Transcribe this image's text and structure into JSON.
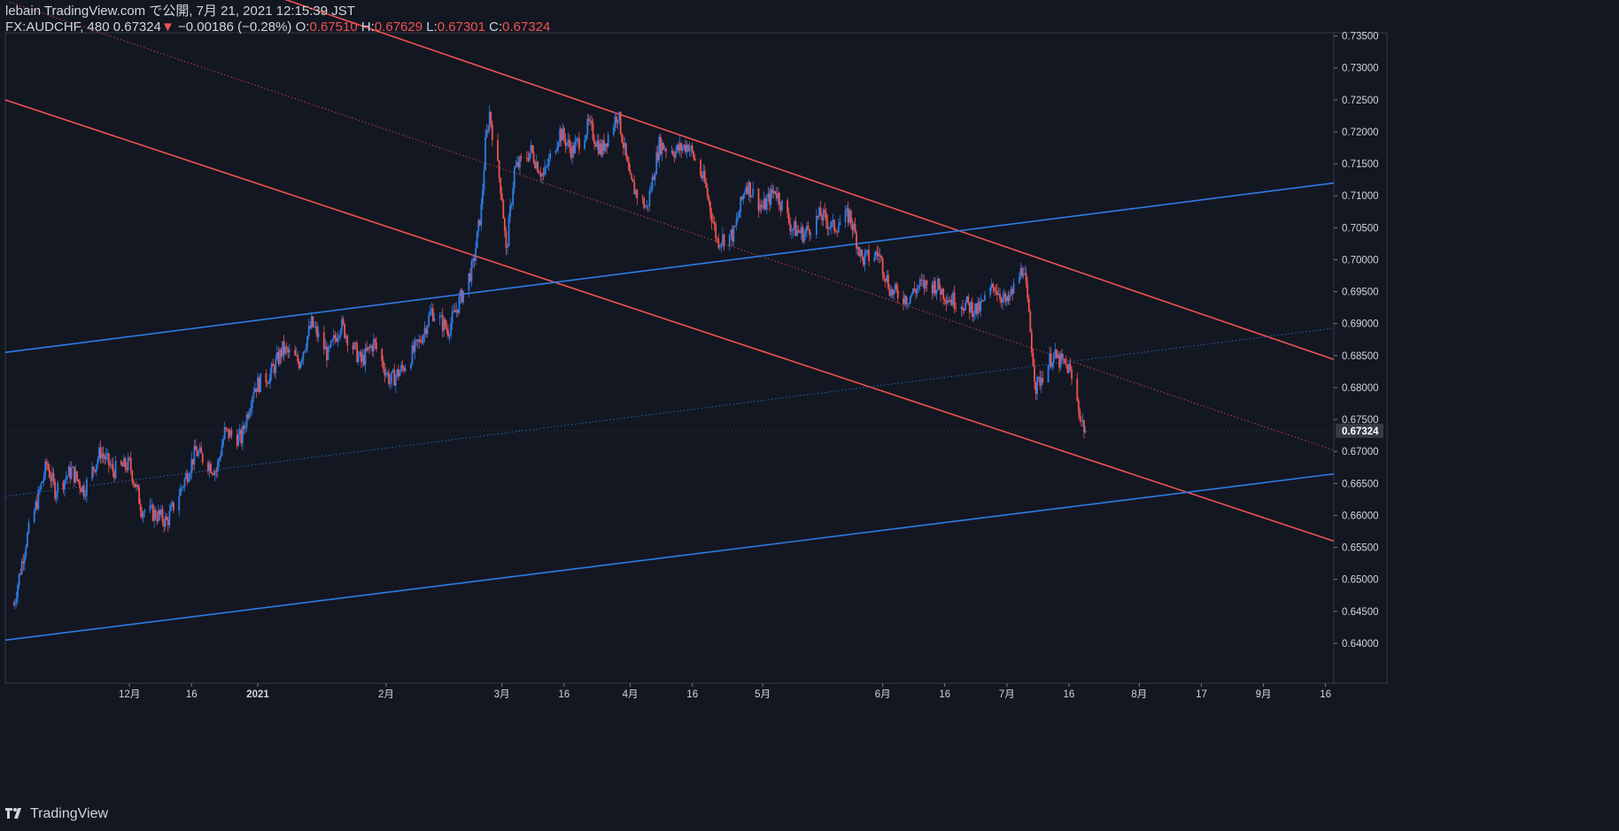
{
  "header": {
    "publish_line": "lebain TradingView.com で公開, 7月 21, 2021 12:15:39 JST",
    "symbol": "FX:AUDCHF, 480",
    "last": "0.67324",
    "change_arrow": "▼",
    "change": "−0.00186 (−0.28%)",
    "o_label": "O:",
    "o_value": "0.67510",
    "h_label": "H:",
    "h_value": "0.67629",
    "l_label": "L:",
    "l_value": "0.67301",
    "c_label": "C:",
    "c_value": "0.67324"
  },
  "branding": {
    "logo_text": "TradingView",
    "logo_icon": "tradingview-logo-icon"
  },
  "colors": {
    "background": "#131722",
    "up": "#2e7ce6",
    "down": "#ef5350",
    "axis_text": "#d1d4dc",
    "grid": "#2a2e39",
    "current_price_bg": "#363a45"
  },
  "chart_data": {
    "type": "candlestick",
    "symbol": "FX:AUDCHF",
    "interval": "480",
    "ylim": [
      0.6375,
      0.7355
    ],
    "y_ticks": [
      "0.64000",
      "0.64500",
      "0.65000",
      "0.65500",
      "0.66000",
      "0.66500",
      "0.67000",
      "0.67500",
      "0.68000",
      "0.68500",
      "0.69000",
      "0.69500",
      "0.70000",
      "0.70500",
      "0.71000",
      "0.71500",
      "0.72000",
      "0.72500",
      "0.73000",
      "0.73500"
    ],
    "x_ticks": [
      {
        "label": "12月",
        "date": "2020-12-01",
        "bold": false
      },
      {
        "label": "16",
        "date": "2020-12-16",
        "bold": false
      },
      {
        "label": "2021",
        "date": "2021-01-01",
        "bold": true
      },
      {
        "label": "2月",
        "date": "2021-02-01",
        "bold": false
      },
      {
        "label": "3月",
        "date": "2021-03-01",
        "bold": false
      },
      {
        "label": "16",
        "date": "2021-03-16",
        "bold": false
      },
      {
        "label": "4月",
        "date": "2021-04-01",
        "bold": false
      },
      {
        "label": "16",
        "date": "2021-04-16",
        "bold": false
      },
      {
        "label": "5月",
        "date": "2021-05-03",
        "bold": false
      },
      {
        "label": "6月",
        "date": "2021-06-01",
        "bold": false
      },
      {
        "label": "16",
        "date": "2021-06-16",
        "bold": false
      },
      {
        "label": "7月",
        "date": "2021-07-01",
        "bold": false
      },
      {
        "label": "16",
        "date": "2021-07-16",
        "bold": false
      },
      {
        "label": "8月",
        "date": "2021-08-02",
        "bold": false
      },
      {
        "label": "17",
        "date": "2021-08-17",
        "bold": false
      },
      {
        "label": "9月",
        "date": "2021-09-01",
        "bold": false
      },
      {
        "label": "16",
        "date": "2021-09-16",
        "bold": false
      }
    ],
    "current_price": "0.67324",
    "price_path": [
      [
        "2020-11-03",
        0.646
      ],
      [
        "2020-11-06",
        0.656
      ],
      [
        "2020-11-09",
        0.663
      ],
      [
        "2020-11-11",
        0.668
      ],
      [
        "2020-11-13",
        0.664
      ],
      [
        "2020-11-17",
        0.667
      ],
      [
        "2020-11-20",
        0.664
      ],
      [
        "2020-11-24",
        0.67
      ],
      [
        "2020-11-27",
        0.667
      ],
      [
        "2020-12-01",
        0.668
      ],
      [
        "2020-12-04",
        0.661
      ],
      [
        "2020-12-08",
        0.66
      ],
      [
        "2020-12-10",
        0.659
      ],
      [
        "2020-12-14",
        0.665
      ],
      [
        "2020-12-17",
        0.67
      ],
      [
        "2020-12-22",
        0.667
      ],
      [
        "2020-12-24",
        0.673
      ],
      [
        "2020-12-28",
        0.672
      ],
      [
        "2020-12-31",
        0.68
      ],
      [
        "2021-01-04",
        0.682
      ],
      [
        "2021-01-07",
        0.686
      ],
      [
        "2021-01-11",
        0.684
      ],
      [
        "2021-01-14",
        0.69
      ],
      [
        "2021-01-18",
        0.685
      ],
      [
        "2021-01-21",
        0.69
      ],
      [
        "2021-01-26",
        0.684
      ],
      [
        "2021-01-29",
        0.687
      ],
      [
        "2021-02-02",
        0.681
      ],
      [
        "2021-02-05",
        0.683
      ],
      [
        "2021-02-09",
        0.687
      ],
      [
        "2021-02-12",
        0.692
      ],
      [
        "2021-02-16",
        0.689
      ],
      [
        "2021-02-19",
        0.694
      ],
      [
        "2021-02-22",
        0.699
      ],
      [
        "2021-02-24",
        0.708
      ],
      [
        "2021-02-25",
        0.718
      ],
      [
        "2021-02-26",
        0.723
      ],
      [
        "2021-03-01",
        0.71
      ],
      [
        "2021-03-02",
        0.701
      ],
      [
        "2021-03-04",
        0.714
      ],
      [
        "2021-03-08",
        0.717
      ],
      [
        "2021-03-11",
        0.713
      ],
      [
        "2021-03-15",
        0.72
      ],
      [
        "2021-03-18",
        0.717
      ],
      [
        "2021-03-22",
        0.721
      ],
      [
        "2021-03-25",
        0.717
      ],
      [
        "2021-03-29",
        0.723
      ],
      [
        "2021-04-01",
        0.712
      ],
      [
        "2021-04-05",
        0.708
      ],
      [
        "2021-04-08",
        0.718
      ],
      [
        "2021-04-12",
        0.717
      ],
      [
        "2021-04-15",
        0.718
      ],
      [
        "2021-04-19",
        0.712
      ],
      [
        "2021-04-22",
        0.703
      ],
      [
        "2021-04-26",
        0.704
      ],
      [
        "2021-04-29",
        0.712
      ],
      [
        "2021-05-03",
        0.708
      ],
      [
        "2021-05-06",
        0.711
      ],
      [
        "2021-05-10",
        0.705
      ],
      [
        "2021-05-13",
        0.704
      ],
      [
        "2021-05-17",
        0.707
      ],
      [
        "2021-05-20",
        0.705
      ],
      [
        "2021-05-24",
        0.707
      ],
      [
        "2021-05-27",
        0.7
      ],
      [
        "2021-05-31",
        0.701
      ],
      [
        "2021-06-03",
        0.695
      ],
      [
        "2021-06-07",
        0.694
      ],
      [
        "2021-06-10",
        0.696
      ],
      [
        "2021-06-14",
        0.696
      ],
      [
        "2021-06-17",
        0.694
      ],
      [
        "2021-06-21",
        0.693
      ],
      [
        "2021-06-24",
        0.692
      ],
      [
        "2021-06-28",
        0.696
      ],
      [
        "2021-07-01",
        0.693
      ],
      [
        "2021-07-05",
        0.699
      ],
      [
        "2021-07-06",
        0.693
      ],
      [
        "2021-07-08",
        0.68
      ],
      [
        "2021-07-12",
        0.685
      ],
      [
        "2021-07-14",
        0.684
      ],
      [
        "2021-07-16",
        0.683
      ],
      [
        "2021-07-19",
        0.675
      ],
      [
        "2021-07-20",
        0.6732
      ]
    ],
    "trendlines": [
      {
        "color": "#ef5350",
        "style": "solid",
        "points": [
          [
            "2020-11-01",
            0.725
          ],
          [
            "2021-09-18",
            0.656
          ]
        ]
      },
      {
        "color": "#ef5350",
        "style": "solid",
        "points": [
          [
            "2020-11-02",
            0.7555
          ],
          [
            "2021-09-18",
            0.6844
          ]
        ]
      },
      {
        "color": "#ef5350",
        "style": "dotted",
        "points": [
          [
            "2020-11-02",
            0.7403
          ],
          [
            "2021-09-18",
            0.6702
          ]
        ]
      },
      {
        "color": "#2e7ce6",
        "style": "solid",
        "points": [
          [
            "2020-11-01",
            0.6855
          ],
          [
            "2021-09-18",
            0.712
          ]
        ]
      },
      {
        "color": "#2e7ce6",
        "style": "solid",
        "points": [
          [
            "2020-11-01",
            0.6405
          ],
          [
            "2021-09-18",
            0.6665
          ]
        ]
      },
      {
        "color": "#2e7ce6",
        "style": "dotted",
        "points": [
          [
            "2020-11-01",
            0.663
          ],
          [
            "2021-09-18",
            0.6893
          ]
        ]
      }
    ]
  }
}
